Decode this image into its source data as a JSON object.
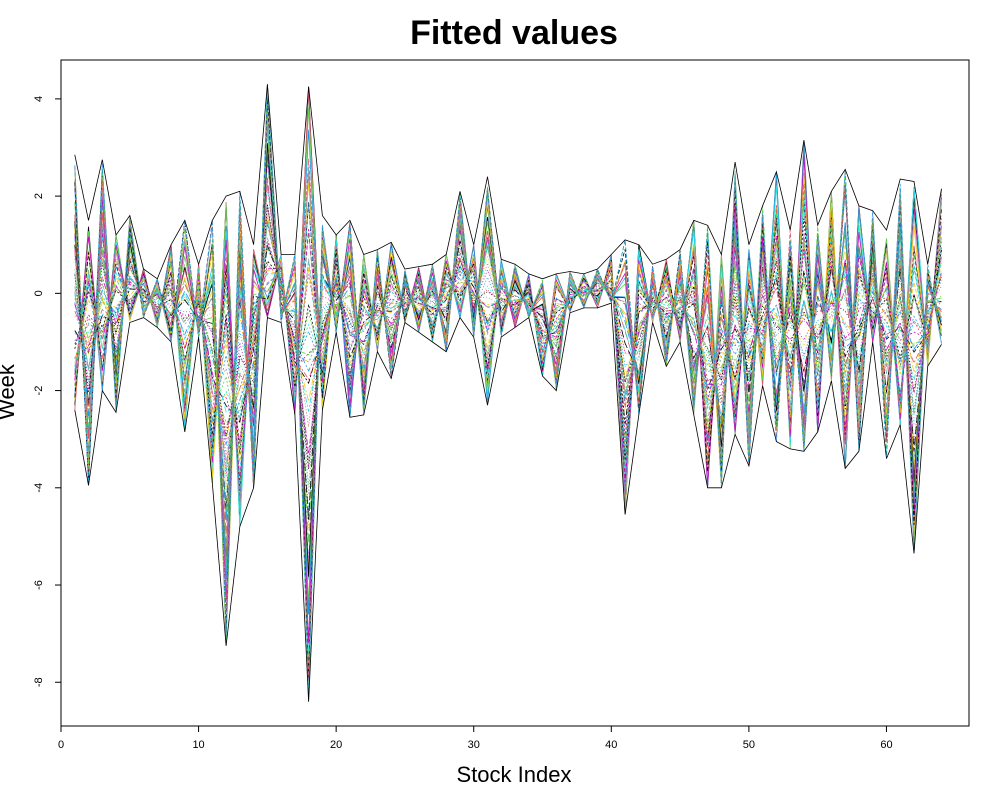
{
  "chart_data": {
    "type": "line",
    "title": "Fitted values",
    "xlabel": "Stock Index",
    "ylabel": "Week",
    "xlim": [
      0,
      66
    ],
    "ylim": [
      -8.9,
      4.8
    ],
    "x_ticks": [
      0,
      10,
      20,
      30,
      40,
      50,
      60
    ],
    "x_tick_labels": [
      "0",
      "10",
      "20",
      "30",
      "40",
      "50",
      "60"
    ],
    "y_ticks": [
      -8,
      -6,
      -4,
      -2,
      0,
      2,
      4
    ],
    "y_tick_labels": [
      "-8",
      "-6",
      "-4",
      "-2",
      "0",
      "2",
      "4"
    ],
    "grid": false,
    "legend": "none",
    "x": [
      1,
      2,
      3,
      4,
      5,
      6,
      7,
      8,
      9,
      10,
      11,
      12,
      13,
      14,
      15,
      16,
      17,
      18,
      19,
      20,
      21,
      22,
      23,
      24,
      25,
      26,
      27,
      28,
      29,
      30,
      31,
      32,
      33,
      34,
      35,
      36,
      37,
      38,
      39,
      40,
      41,
      42,
      43,
      44,
      45,
      46,
      47,
      48,
      49,
      50,
      51,
      52,
      53,
      54,
      55,
      56,
      57,
      58,
      59,
      60,
      61,
      62,
      63,
      64
    ],
    "envelope_upper": [
      2.85,
      1.5,
      2.75,
      1.2,
      1.6,
      0.5,
      0.3,
      1.0,
      1.5,
      0.6,
      1.5,
      2.0,
      2.1,
      1.0,
      4.3,
      0.8,
      0.8,
      4.25,
      1.6,
      1.2,
      1.5,
      0.8,
      0.9,
      1.05,
      0.5,
      0.55,
      0.6,
      0.8,
      2.1,
      1.0,
      2.4,
      0.7,
      0.6,
      0.4,
      0.3,
      0.4,
      0.45,
      0.4,
      0.5,
      0.8,
      1.1,
      1.0,
      0.6,
      0.7,
      0.9,
      1.5,
      1.4,
      0.8,
      2.7,
      1.0,
      1.8,
      2.5,
      1.3,
      3.15,
      1.4,
      2.1,
      2.55,
      1.8,
      1.7,
      1.3,
      2.35,
      2.3,
      0.6,
      2.15
    ],
    "envelope_lower": [
      -2.4,
      -3.95,
      -2.0,
      -2.45,
      -0.6,
      -0.5,
      -0.7,
      -1.0,
      -2.85,
      -0.9,
      -3.9,
      -7.25,
      -4.8,
      -4.0,
      -0.5,
      -0.6,
      -2.5,
      -8.4,
      -2.4,
      -0.8,
      -2.55,
      -2.5,
      -1.2,
      -1.75,
      -0.6,
      -0.8,
      -1.0,
      -1.2,
      -0.5,
      -0.9,
      -2.3,
      -0.9,
      -0.7,
      -0.5,
      -1.7,
      -2.0,
      -0.4,
      -0.3,
      -0.3,
      -0.2,
      -4.55,
      -2.5,
      -0.6,
      -1.5,
      -1.0,
      -2.5,
      -4.0,
      -4.0,
      -2.9,
      -3.55,
      -1.9,
      -3.05,
      -3.2,
      -3.25,
      -2.85,
      -1.8,
      -3.6,
      -3.25,
      -1.0,
      -3.4,
      -2.7,
      -5.35,
      -1.5,
      -1.05
    ],
    "num_series": 60,
    "series_colors": [
      "#000000",
      "#DF536B",
      "#61D04F",
      "#2297E6",
      "#28E2E5",
      "#CD0BBC",
      "#F5C710",
      "#9E9E9E"
    ]
  }
}
